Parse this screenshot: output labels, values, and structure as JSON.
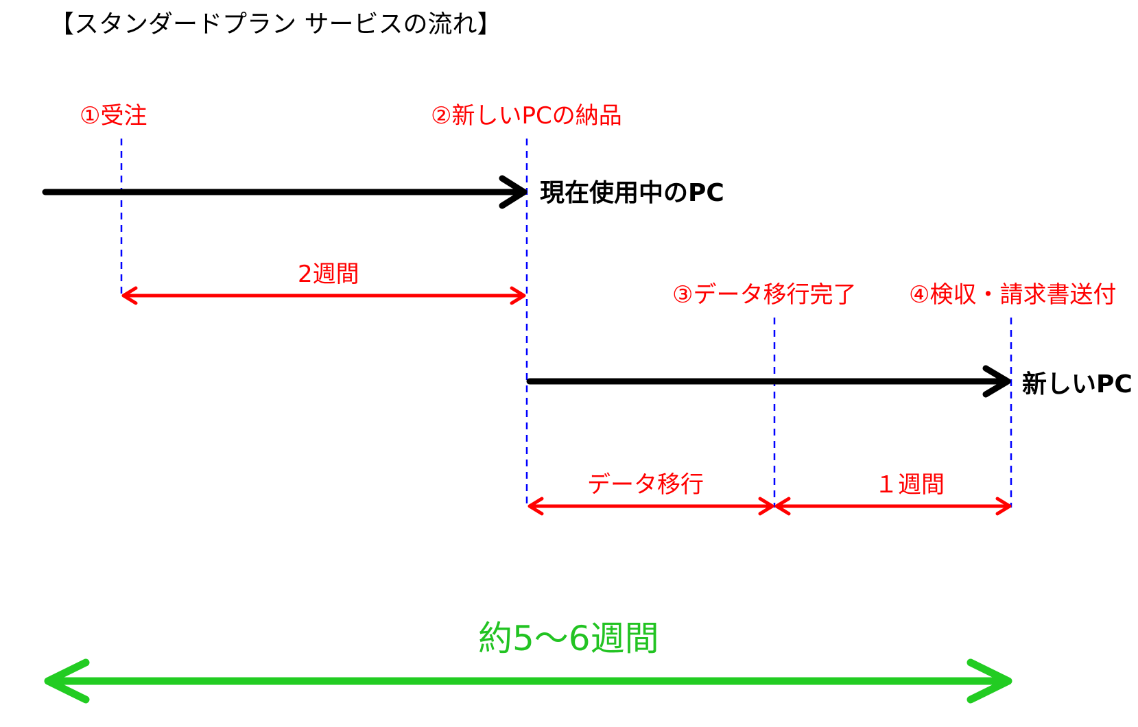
{
  "title": "【スタンダードプラン サービスの流れ】",
  "milestones": [
    {
      "label": "①受注"
    },
    {
      "label": "②新しいPCの納品"
    },
    {
      "label": "③データ移行完了"
    },
    {
      "label": "④検収・請求書送付"
    }
  ],
  "pcs": {
    "current": "現在使用中のPC",
    "new": "新しいPC"
  },
  "durations": {
    "order_to_delivery": "2週間",
    "migration": "データ移行",
    "inspection": "１週間"
  },
  "total": "約5～6週間",
  "colors": {
    "milestone_text": "#ff0000",
    "guide_line": "#0000ff",
    "pc_arrow": "#000000",
    "duration_arrow": "#ff0000",
    "total_arrow": "#22cc22",
    "total_text": "#22c322"
  }
}
